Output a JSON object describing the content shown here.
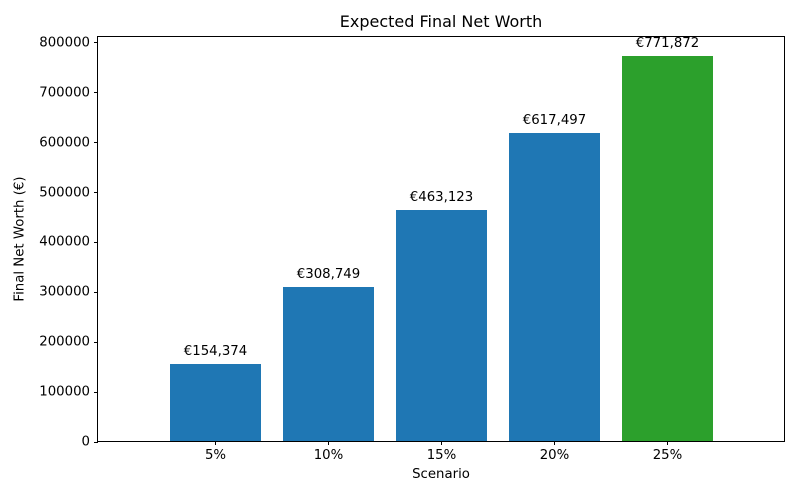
{
  "chart_data": {
    "type": "bar",
    "title": "Expected Final Net Worth",
    "xlabel": "Scenario",
    "ylabel": "Final Net Worth (€)",
    "categories": [
      "5%",
      "10%",
      "15%",
      "20%",
      "25%"
    ],
    "values": [
      154374,
      308749,
      463123,
      617497,
      771872
    ],
    "bar_labels": [
      "€154,374",
      "€308,749",
      "€463,123",
      "€617,497",
      "€771,872"
    ],
    "bar_colors": [
      "#1f77b4",
      "#1f77b4",
      "#1f77b4",
      "#1f77b4",
      "#2ca02c"
    ],
    "yticks": [
      0,
      100000,
      200000,
      300000,
      400000,
      500000,
      600000,
      700000,
      800000
    ],
    "ytick_labels": [
      "0",
      "100000",
      "200000",
      "300000",
      "400000",
      "500000",
      "600000",
      "700000",
      "800000"
    ],
    "ylim": [
      0,
      812000
    ],
    "grid": false,
    "legend": null,
    "background_color": "#ffffff",
    "spine_color": "#000000"
  }
}
